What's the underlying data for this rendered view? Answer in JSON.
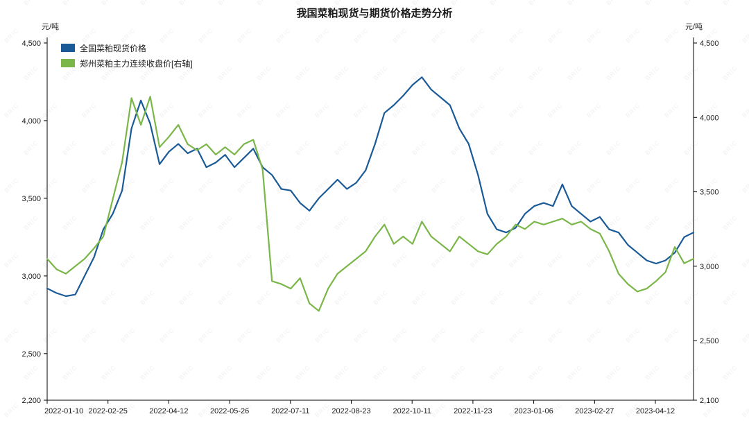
{
  "title": "我国菜粕现货与期货价格走势分析",
  "watermark": "BRIC",
  "chart_data": {
    "type": "line",
    "title": "我国菜粕现货与期货价格走势分析",
    "grid": false,
    "legend_position": "top-left",
    "left_axis": {
      "unit": "元/吨",
      "min": 2200,
      "max": 4500,
      "ticks": [
        4500,
        4000,
        3500,
        3000,
        2500,
        2200
      ]
    },
    "right_axis": {
      "unit": "元/吨",
      "min": 2100,
      "max": 4500,
      "ticks": [
        4500,
        4000,
        3500,
        3000,
        2500,
        2100
      ]
    },
    "x_tick_labels": [
      "2022-01-10",
      "2022-02-25",
      "2022-04-12",
      "2022-05-26",
      "2022-07-11",
      "2022-08-23",
      "2022-10-11",
      "2022-11-23",
      "2023-01-06",
      "2023-02-27",
      "2023-04-12"
    ],
    "series": [
      {
        "name": "全国菜粕现货价格",
        "axis": "left",
        "color": "#1a5a96",
        "values": [
          2920,
          2890,
          2870,
          2880,
          3000,
          3120,
          3300,
          3400,
          3550,
          3950,
          4130,
          3980,
          3720,
          3800,
          3850,
          3790,
          3820,
          3700,
          3730,
          3780,
          3700,
          3760,
          3820,
          3700,
          3650,
          3560,
          3550,
          3470,
          3420,
          3500,
          3560,
          3620,
          3560,
          3600,
          3680,
          3850,
          4050,
          4100,
          4160,
          4230,
          4280,
          4200,
          4150,
          4100,
          3950,
          3850,
          3650,
          3400,
          3300,
          3280,
          3310,
          3400,
          3450,
          3470,
          3450,
          3590,
          3450,
          3400,
          3350,
          3380,
          3300,
          3280,
          3200,
          3150,
          3100,
          3080,
          3100,
          3150,
          3250,
          3280
        ]
      },
      {
        "name": "郑州菜粕主力连续收盘价[右轴]",
        "axis": "right",
        "color": "#7ab648",
        "values": [
          3050,
          2980,
          2950,
          3000,
          3050,
          3120,
          3200,
          3450,
          3700,
          4130,
          3950,
          4140,
          3800,
          3870,
          3950,
          3820,
          3780,
          3820,
          3750,
          3800,
          3750,
          3820,
          3850,
          3650,
          2900,
          2880,
          2850,
          2920,
          2750,
          2700,
          2850,
          2950,
          3000,
          3050,
          3100,
          3200,
          3280,
          3150,
          3200,
          3150,
          3300,
          3200,
          3150,
          3100,
          3200,
          3150,
          3100,
          3080,
          3150,
          3200,
          3280,
          3250,
          3300,
          3280,
          3300,
          3320,
          3280,
          3300,
          3250,
          3220,
          3100,
          2950,
          2880,
          2830,
          2850,
          2900,
          2960,
          3130,
          3020,
          3050
        ]
      }
    ]
  }
}
